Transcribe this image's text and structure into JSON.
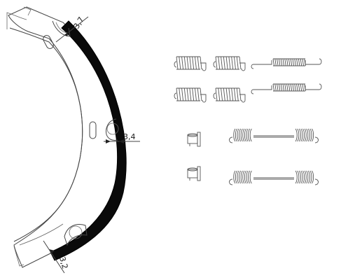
{
  "dimensions": {
    "top_thickness": "3,7",
    "middle_thickness": "3,4",
    "bottom_thickness": "3,2"
  },
  "parts": {
    "brake_shoe": "brake-shoe",
    "short_springs": 4,
    "long_springs_with_coil": 2,
    "pins": 2,
    "long_tension_springs": 2
  }
}
